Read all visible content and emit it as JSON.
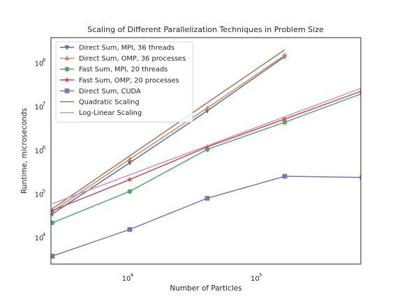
{
  "chart_data": {
    "type": "line",
    "title": "Scaling of Different Parallelization Techniques in Problem Size",
    "xlabel": "Number of Particles",
    "ylabel": "Runtime, microseconds",
    "xscale": "log",
    "yscale": "log",
    "xlim": [
      2500,
      640000
    ],
    "ylim": [
      2500,
      380000000
    ],
    "grid": false,
    "legend_position": "top-left",
    "x_ticks": [
      {
        "base": "10",
        "exp": "4",
        "value": 10000
      },
      {
        "base": "10",
        "exp": "5",
        "value": 100000
      }
    ],
    "y_ticks": [
      {
        "base": "10",
        "exp": "4",
        "value": 10000
      },
      {
        "base": "10",
        "exp": "5",
        "value": 100000
      },
      {
        "base": "10",
        "exp": "6",
        "value": 1000000
      },
      {
        "base": "10",
        "exp": "7",
        "value": 10000000
      },
      {
        "base": "10",
        "exp": "8",
        "value": 100000000
      }
    ],
    "series": [
      {
        "name": "Direct Sum, MPI, 36 threads",
        "color": "#4c72b0",
        "marker": "triangle-down",
        "x": [
          2560,
          10240,
          40960,
          163840
        ],
        "y": [
          35000,
          520000,
          8000000,
          140000000
        ]
      },
      {
        "name": "Direct Sum, OMP, 36 processes",
        "color": "#dd8452",
        "marker": "triangle-up",
        "x": [
          2560,
          10240,
          40960,
          163840
        ],
        "y": [
          40000,
          630000,
          9300000,
          150000000
        ]
      },
      {
        "name": "Fast Sum, MPI, 20 threads",
        "color": "#55a868",
        "marker": "circle",
        "x": [
          2560,
          10240,
          40960,
          163840,
          655360
        ],
        "y": [
          22000,
          115000,
          1050000,
          4400000,
          20000000
        ]
      },
      {
        "name": "Fast Sum, OMP, 20 processes",
        "color": "#c44e52",
        "marker": "star",
        "x": [
          2560,
          10240,
          40960,
          163840,
          655360
        ],
        "y": [
          42000,
          215000,
          1200000,
          5200000,
          23000000
        ]
      },
      {
        "name": "Direct Sum, CUDA",
        "color": "#8172b3",
        "marker": "square",
        "x": [
          2560,
          10240,
          40960,
          163840,
          655360
        ],
        "y": [
          3800,
          15500,
          80000,
          255000,
          240000
        ]
      },
      {
        "name": "Quadratic Scaling",
        "color": "#937860",
        "marker": "none",
        "x": [
          2560,
          163840
        ],
        "y": [
          46000,
          200000000
        ]
      },
      {
        "name": "Log-Linear Scaling",
        "color": "#da8bc3",
        "marker": "none",
        "x": [
          2560,
          655360
        ],
        "y": [
          60000,
          27000000
        ]
      }
    ]
  }
}
